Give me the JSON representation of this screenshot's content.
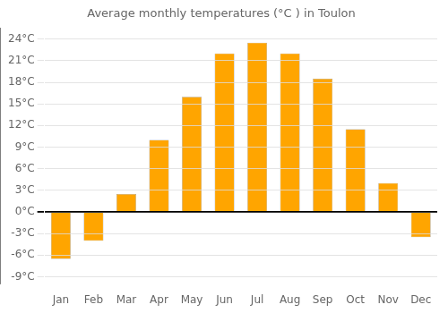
{
  "chart_data": {
    "type": "bar",
    "title": "Average monthly temperatures (°C ) in Toulon",
    "categories": [
      "Jan",
      "Feb",
      "Mar",
      "Apr",
      "May",
      "Jun",
      "Jul",
      "Aug",
      "Sep",
      "Oct",
      "Nov",
      "Dec"
    ],
    "values": [
      -6.5,
      -4.0,
      2.5,
      10.0,
      16.0,
      22.0,
      23.5,
      22.0,
      18.5,
      11.5,
      4.0,
      -3.5
    ],
    "color": "#FFA500",
    "ylim": [
      -10,
      25.5
    ],
    "yticks": [
      {
        "value": -9,
        "label": "-9°C"
      },
      {
        "value": -6,
        "label": "-6°C"
      },
      {
        "value": -3,
        "label": "-3°C"
      },
      {
        "value": 0,
        "label": "0°C"
      },
      {
        "value": 3,
        "label": "3°C"
      },
      {
        "value": 6,
        "label": "6°C"
      },
      {
        "value": 9,
        "label": "9°C"
      },
      {
        "value": 12,
        "label": "12°C"
      },
      {
        "value": 15,
        "label": "15°C"
      },
      {
        "value": 18,
        "label": "18°C"
      },
      {
        "value": 21,
        "label": "21°C"
      },
      {
        "value": 24,
        "label": "24°C"
      }
    ],
    "grid": true
  }
}
